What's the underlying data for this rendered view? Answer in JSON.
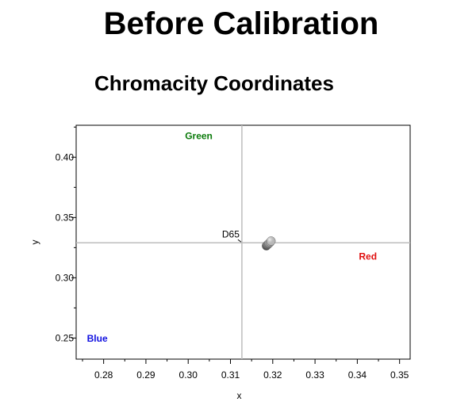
{
  "page": {
    "heading": "Before Calibration"
  },
  "chart_data": {
    "type": "scatter",
    "title": "Chromacity Coordinates",
    "xlabel": "x",
    "ylabel": "y",
    "xlim": [
      0.2735,
      0.3525
    ],
    "ylim": [
      0.2325,
      0.4265
    ],
    "x_ticks": [
      0.28,
      0.29,
      0.3,
      0.31,
      0.32,
      0.33,
      0.34,
      0.35
    ],
    "x_tick_labels": [
      "0.28",
      "0.29",
      "0.30",
      "0.31",
      "0.32",
      "0.33",
      "0.34",
      "0.35"
    ],
    "y_ticks": [
      0.25,
      0.3,
      0.35,
      0.4
    ],
    "y_tick_labels": [
      "0.25",
      "0.30",
      "0.35",
      "0.40"
    ],
    "grid": false,
    "reference": {
      "label": "D65",
      "x": 0.3127,
      "y": 0.329
    },
    "annotations": [
      {
        "text": "Green",
        "x": 0.3025,
        "y": 0.4175,
        "color": "#0a7a0a"
      },
      {
        "text": "Red",
        "x": 0.3425,
        "y": 0.3175,
        "color": "#e01010"
      },
      {
        "text": "Blue",
        "x": 0.2785,
        "y": 0.2495,
        "color": "#1010e0"
      }
    ],
    "points": [
      {
        "x": 0.3185,
        "y": 0.3265,
        "color": "#505050"
      },
      {
        "x": 0.3188,
        "y": 0.3275,
        "color": "#7a7a7a"
      },
      {
        "x": 0.3191,
        "y": 0.3285,
        "color": "#a0a0a0"
      },
      {
        "x": 0.3194,
        "y": 0.3295,
        "color": "#c8c8c8"
      },
      {
        "x": 0.3196,
        "y": 0.3305,
        "color": "#e2e2e2"
      }
    ]
  }
}
